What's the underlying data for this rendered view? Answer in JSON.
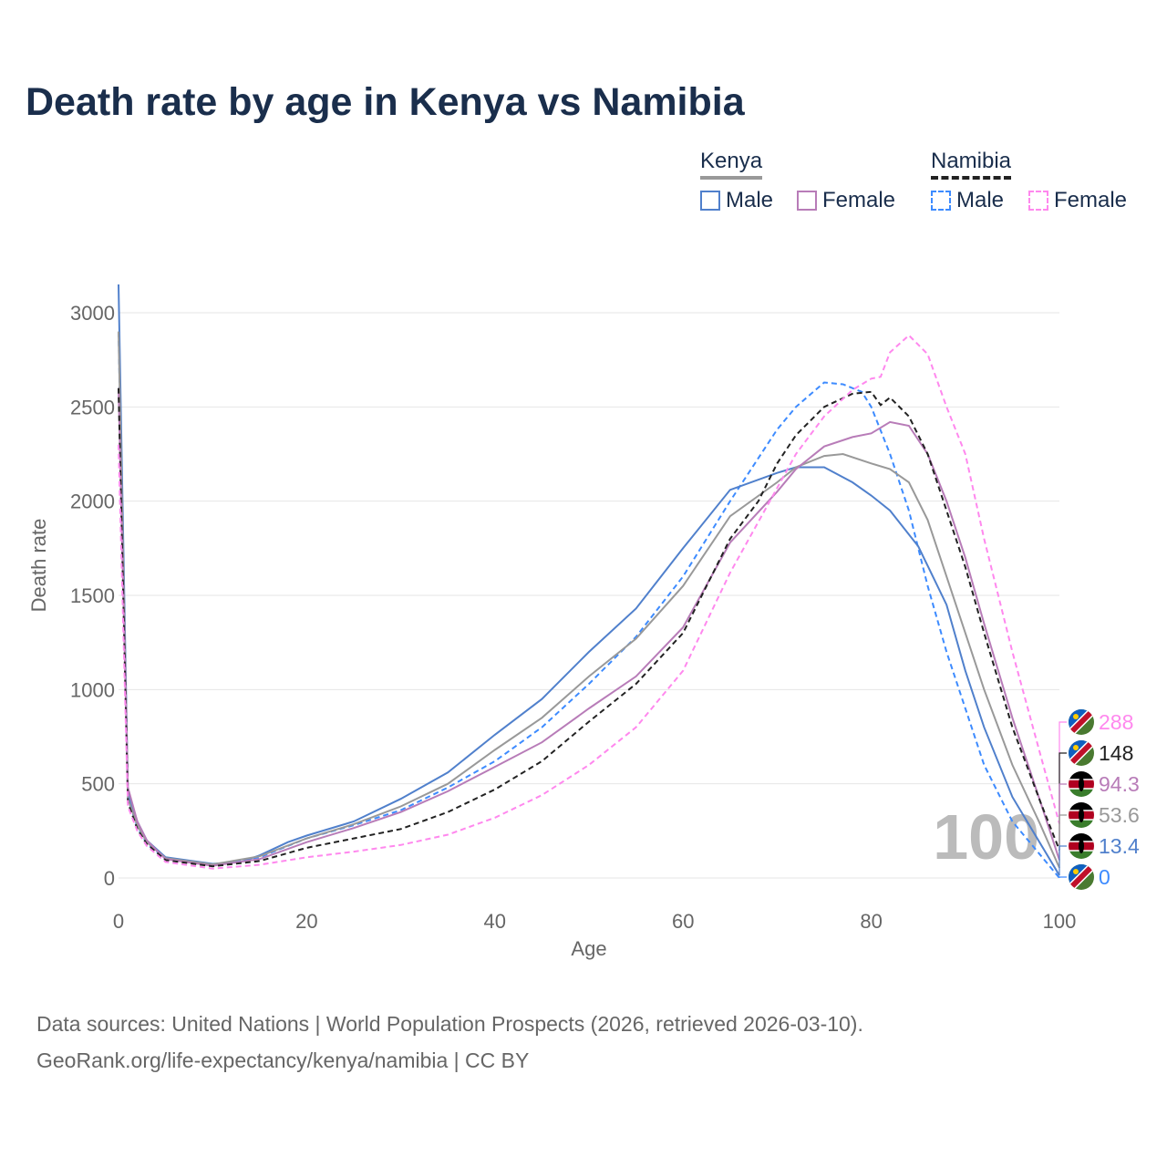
{
  "title": "Death rate by age in Kenya vs Namibia",
  "legend": {
    "groups": [
      {
        "label": "Kenya",
        "color": "#999999"
      },
      {
        "label": "Namibia",
        "color": "#222222"
      }
    ],
    "items": [
      {
        "label": "Male",
        "color": "#5080cc",
        "dashed": false
      },
      {
        "label": "Female",
        "color": "#b87cb8",
        "dashed": false
      },
      {
        "label": "Male",
        "color": "#3d8bff",
        "dashed": true
      },
      {
        "label": "Female",
        "color": "#ff88ee",
        "dashed": true
      }
    ]
  },
  "watermark": "100",
  "sources": {
    "line1": "Data sources: United Nations | World Population Prospects (2026, retrieved 2026-03-10).",
    "line2": "GeoRank.org/life-expectancy/kenya/namibia | CC BY"
  },
  "chart_data": {
    "type": "line",
    "title": "Death rate by age in Kenya vs Namibia",
    "xlabel": "Age",
    "ylabel": "Death rate",
    "xlim": [
      0,
      100
    ],
    "ylim": [
      0,
      3150
    ],
    "xticks": [
      0,
      20,
      40,
      60,
      80,
      100
    ],
    "yticks": [
      0,
      500,
      1000,
      1500,
      2000,
      2500,
      3000
    ],
    "grid": true,
    "series": [
      {
        "name": "Namibia Female",
        "country": "Namibia",
        "color": "#ff88ee",
        "dashed": true,
        "end_label": "288",
        "x": [
          0,
          1,
          2,
          3,
          5,
          10,
          15,
          20,
          25,
          30,
          35,
          40,
          45,
          50,
          55,
          60,
          65,
          70,
          72,
          75,
          78,
          80,
          81,
          82,
          84,
          86,
          88,
          90,
          92,
          95,
          98,
          100
        ],
        "y": [
          2300,
          380,
          250,
          170,
          85,
          50,
          70,
          110,
          140,
          175,
          230,
          320,
          440,
          600,
          800,
          1100,
          1620,
          2070,
          2250,
          2450,
          2590,
          2650,
          2660,
          2790,
          2880,
          2780,
          2500,
          2250,
          1800,
          1200,
          650,
          288
        ]
      },
      {
        "name": "Namibia",
        "country": "Namibia",
        "color": "#222222",
        "dashed": true,
        "end_label": "148",
        "x": [
          0,
          1,
          2,
          3,
          5,
          10,
          15,
          20,
          25,
          30,
          35,
          40,
          45,
          50,
          55,
          60,
          65,
          68,
          70,
          72,
          75,
          78,
          80,
          81,
          82,
          84,
          86,
          88,
          90,
          92,
          95,
          98,
          100
        ],
        "y": [
          2600,
          400,
          260,
          180,
          95,
          62,
          90,
          160,
          210,
          260,
          350,
          470,
          620,
          830,
          1030,
          1300,
          1800,
          2000,
          2200,
          2350,
          2500,
          2570,
          2580,
          2510,
          2550,
          2450,
          2250,
          1950,
          1650,
          1300,
          800,
          400,
          148
        ]
      },
      {
        "name": "Kenya Female",
        "country": "Kenya",
        "color": "#b87cb8",
        "dashed": false,
        "end_label": "94.3",
        "x": [
          0,
          1,
          2,
          3,
          5,
          10,
          15,
          20,
          25,
          30,
          35,
          40,
          45,
          50,
          55,
          60,
          65,
          70,
          72,
          75,
          78,
          80,
          82,
          84,
          86,
          88,
          90,
          92,
          95,
          98,
          100
        ],
        "y": [
          2600,
          480,
          300,
          200,
          100,
          65,
          100,
          190,
          265,
          350,
          460,
          590,
          720,
          900,
          1070,
          1330,
          1780,
          2050,
          2170,
          2290,
          2340,
          2360,
          2420,
          2400,
          2250,
          2000,
          1700,
          1350,
          850,
          400,
          94.3
        ]
      },
      {
        "name": "Kenya",
        "country": "Kenya",
        "color": "#999999",
        "dashed": false,
        "end_label": "53.6",
        "x": [
          0,
          1,
          2,
          3,
          5,
          10,
          15,
          20,
          25,
          30,
          35,
          40,
          45,
          50,
          55,
          60,
          65,
          70,
          72,
          75,
          77,
          80,
          82,
          84,
          86,
          88,
          90,
          92,
          95,
          98,
          100
        ],
        "y": [
          2900,
          420,
          280,
          190,
          105,
          72,
          115,
          210,
          285,
          380,
          500,
          680,
          850,
          1070,
          1270,
          1550,
          1920,
          2100,
          2180,
          2240,
          2250,
          2200,
          2170,
          2100,
          1900,
          1600,
          1300,
          1000,
          600,
          280,
          53.6
        ]
      },
      {
        "name": "Kenya Male",
        "country": "Kenya",
        "color": "#5080cc",
        "dashed": false,
        "end_label": "13.4",
        "x": [
          0,
          1,
          2,
          3,
          5,
          10,
          13,
          15,
          18,
          20,
          25,
          30,
          35,
          40,
          45,
          50,
          55,
          60,
          65,
          70,
          72,
          75,
          78,
          80,
          82,
          85,
          88,
          90,
          92,
          95,
          98,
          100
        ],
        "y": [
          3150,
          450,
          300,
          200,
          110,
          75,
          85,
          120,
          190,
          225,
          300,
          420,
          560,
          760,
          950,
          1200,
          1430,
          1750,
          2060,
          2150,
          2180,
          2180,
          2100,
          2030,
          1950,
          1760,
          1450,
          1100,
          800,
          430,
          180,
          13.4
        ]
      },
      {
        "name": "Namibia Male",
        "country": "Namibia",
        "color": "#3d8bff",
        "dashed": true,
        "end_label": "0",
        "x": [
          0,
          1,
          2,
          3,
          5,
          10,
          15,
          20,
          25,
          30,
          35,
          40,
          45,
          50,
          55,
          60,
          65,
          70,
          72,
          75,
          77,
          79,
          80,
          82,
          84,
          86,
          88,
          90,
          92,
          95,
          98,
          100
        ],
        "y": [
          2900,
          420,
          270,
          185,
          100,
          70,
          110,
          210,
          280,
          360,
          480,
          620,
          800,
          1030,
          1280,
          1600,
          2000,
          2380,
          2500,
          2630,
          2620,
          2580,
          2500,
          2250,
          1950,
          1550,
          1200,
          900,
          600,
          300,
          120,
          0
        ]
      }
    ]
  }
}
